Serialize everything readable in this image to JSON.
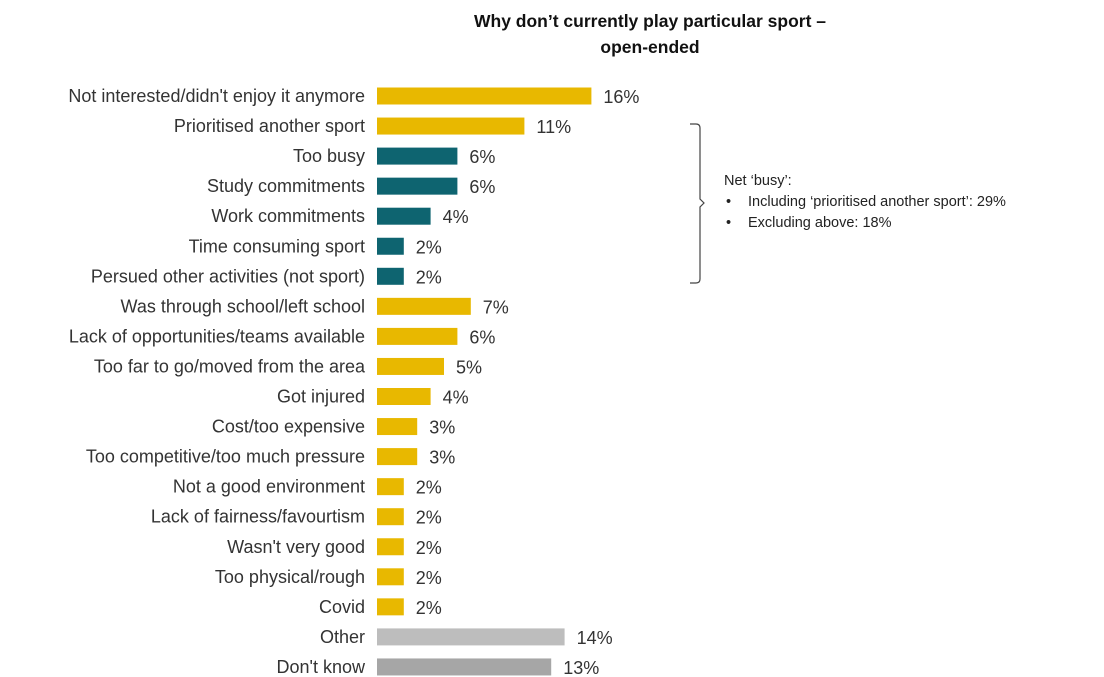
{
  "chart_data": {
    "type": "bar",
    "orientation": "horizontal",
    "title_line1": "Why don’t currently play particular sport –",
    "title_line2": "open-ended",
    "categories": [
      "Not interested/didn't enjoy it anymore",
      "Prioritised another sport",
      "Too busy",
      "Study commitments",
      "Work commitments",
      "Time consuming sport",
      "Persued other activities (not sport)",
      "Was through school/left school",
      "Lack of opportunities/teams available",
      "Too far to go/moved from the area",
      "Got injured",
      "Cost/too expensive",
      "Too competitive/too much pressure",
      "Not a good environment",
      "Lack of fairness/favourtism",
      "Wasn't very good",
      "Too physical/rough",
      "Covid",
      "Other",
      "Don't know"
    ],
    "values": [
      16,
      11,
      6,
      6,
      4,
      2,
      2,
      7,
      6,
      5,
      4,
      3,
      3,
      2,
      2,
      2,
      2,
      2,
      14,
      13
    ],
    "value_labels": [
      "16%",
      "11%",
      "6%",
      "6%",
      "4%",
      "2%",
      "2%",
      "7%",
      "6%",
      "5%",
      "4%",
      "3%",
      "3%",
      "2%",
      "2%",
      "2%",
      "2%",
      "2%",
      "14%",
      "13%"
    ],
    "bar_groups": [
      "main",
      "main",
      "busy",
      "busy",
      "busy",
      "busy",
      "busy",
      "main",
      "main",
      "main",
      "main",
      "main",
      "main",
      "main",
      "main",
      "main",
      "main",
      "main",
      "other",
      "dontknow"
    ],
    "colors": {
      "main": "#E8B800",
      "busy": "#0E6470",
      "other": "#BDBDBD",
      "dontknow": "#A6A6A6"
    },
    "xlim": [
      0,
      16
    ],
    "grid": false,
    "annotation": {
      "heading": "Net ‘busy’:",
      "items": [
        "Including ‘prioritised another sport’: 29%",
        "Excluding above: 18%"
      ]
    }
  }
}
